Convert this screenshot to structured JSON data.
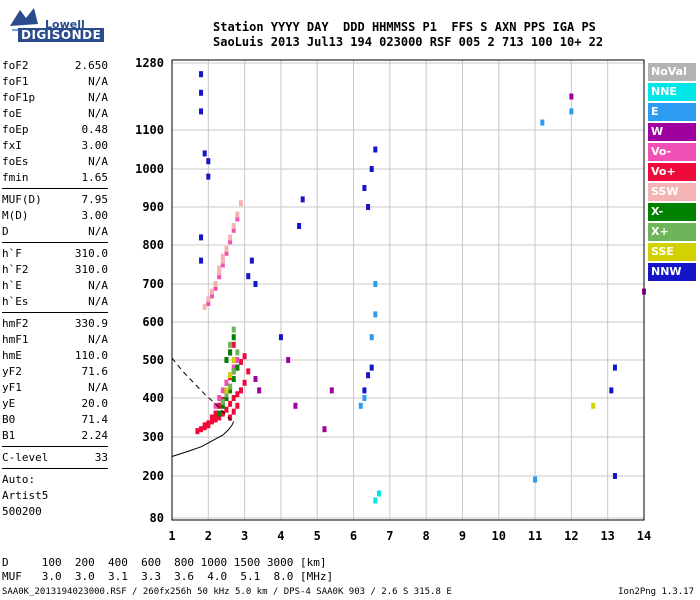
{
  "logo": {
    "line1": "Lowell",
    "line2": "DIGISONDE"
  },
  "header": {
    "line1": "Station YYYY DAY  DDD HHMMSS P1  FFS S AXN PPS IGA PS",
    "line2": "SaoLuis 2013 Jul13 194 023000 RSF 005 2 713 100 10+ 22"
  },
  "params": {
    "group1": [
      {
        "name": "foF2",
        "value": "2.650"
      },
      {
        "name": "foF1",
        "value": "N/A"
      },
      {
        "name": "foF1p",
        "value": "N/A"
      },
      {
        "name": "foE",
        "value": "N/A"
      },
      {
        "name": "foEp",
        "value": "0.48"
      },
      {
        "name": "fxI",
        "value": "3.00"
      },
      {
        "name": "foEs",
        "value": "N/A"
      },
      {
        "name": "fmin",
        "value": "1.65"
      }
    ],
    "group2": [
      {
        "name": "MUF(D)",
        "value": "7.95"
      },
      {
        "name": "M(D)",
        "value": "3.00"
      },
      {
        "name": "D",
        "value": "N/A"
      }
    ],
    "group3": [
      {
        "name": "h`F",
        "value": "310.0"
      },
      {
        "name": "h`F2",
        "value": "310.0"
      },
      {
        "name": "h`E",
        "value": "N/A"
      },
      {
        "name": "h`Es",
        "value": "N/A"
      }
    ],
    "group4": [
      {
        "name": "hmF2",
        "value": "330.9"
      },
      {
        "name": "hmF1",
        "value": "N/A"
      },
      {
        "name": "hmE",
        "value": "110.0"
      },
      {
        "name": "yF2",
        "value": "71.6"
      },
      {
        "name": "yF1",
        "value": "N/A"
      },
      {
        "name": "yE",
        "value": "20.0"
      },
      {
        "name": "B0",
        "value": "71.4"
      },
      {
        "name": "B1",
        "value": "2.24"
      }
    ],
    "clevel": {
      "name": "C-level",
      "value": "33"
    },
    "auto": [
      "Auto:",
      "Artist5",
      "500200"
    ]
  },
  "legend": [
    {
      "label": "NoVal",
      "color": "#b4b4b4"
    },
    {
      "label": "NNE",
      "color": "#00e6e6"
    },
    {
      "label": "E",
      "color": "#2d9bf0"
    },
    {
      "label": "W",
      "color": "#a000a0"
    },
    {
      "label": "Vo-",
      "color": "#f050b4"
    },
    {
      "label": "Vo+",
      "color": "#f00a3c"
    },
    {
      "label": "SSW",
      "color": "#f5b4b4"
    },
    {
      "label": "X-",
      "color": "#008200"
    },
    {
      "label": "X+",
      "color": "#6eb45a"
    },
    {
      "label": "SSE",
      "color": "#d2d200"
    },
    {
      "label": "NNW",
      "color": "#1414c8"
    }
  ],
  "footer": {
    "line1": "D     100  200  400  600  800 1000 1500 3000 [km]",
    "line2": "MUF   3.0  3.0  3.1  3.3  3.6  4.0  5.1  8.0 [MHz]",
    "info": "SAA0K_2013194023000.RSF / 260fx256h 50 kHz 5.0 km / DPS-4 SAA0K 903 / 2.6 S 315.8 E",
    "version": "Ion2Png 1.3.17"
  },
  "chart_data": {
    "type": "scatter",
    "x_ticks": [
      "1",
      "2",
      "3",
      "4",
      "5",
      "6",
      "7",
      "8",
      "9",
      "10",
      "11",
      "12",
      "13",
      "14"
    ],
    "y_ticks": [
      "80",
      "200",
      "300",
      "400",
      "500",
      "600",
      "700",
      "800",
      "900",
      "1000",
      "1100",
      "1280"
    ],
    "xlim": [
      1,
      14
    ],
    "ylim": [
      80,
      1280
    ],
    "grid": true,
    "series": [
      {
        "name": "Vo+",
        "color": "#f00a3c",
        "x": [
          1.7,
          1.8,
          1.9,
          2.0,
          2.1,
          2.2,
          2.3,
          2.4,
          2.5,
          2.6,
          2.7,
          2.8,
          2.9,
          2.5,
          2.6,
          2.7,
          2.8,
          2.9,
          3.0,
          2.2,
          2.3,
          2.4,
          2.1,
          2.0,
          1.9,
          2.6,
          2.7,
          2.8,
          2.9,
          3.0,
          3.1,
          2.5,
          2.6,
          2.7
        ],
        "y": [
          315,
          320,
          325,
          330,
          340,
          345,
          350,
          360,
          370,
          385,
          400,
          410,
          420,
          440,
          455,
          470,
          480,
          495,
          510,
          360,
          380,
          395,
          350,
          335,
          330,
          350,
          365,
          380,
          420,
          440,
          470,
          500,
          520,
          540
        ]
      },
      {
        "name": "Vo-",
        "color": "#f050b4",
        "x": [
          2.0,
          2.1,
          2.2,
          2.3,
          2.4,
          2.5,
          2.6,
          2.7,
          2.8,
          2.2,
          2.3,
          2.4,
          2.5,
          2.6,
          2.7,
          2.8
        ],
        "y": [
          650,
          670,
          690,
          720,
          750,
          780,
          810,
          840,
          870,
          380,
          400,
          420,
          440,
          460,
          480,
          500
        ]
      },
      {
        "name": "SSW",
        "color": "#f5b4b4",
        "x": [
          1.9,
          2.0,
          2.1,
          2.2,
          2.3,
          2.4,
          2.5,
          2.6,
          2.7,
          2.8,
          2.9,
          2.3,
          2.4
        ],
        "y": [
          640,
          660,
          680,
          700,
          730,
          760,
          790,
          820,
          850,
          880,
          910,
          740,
          770
        ]
      },
      {
        "name": "X-",
        "color": "#008200",
        "x": [
          2.3,
          2.4,
          2.5,
          2.6,
          2.7,
          2.8,
          2.5,
          2.6,
          2.7
        ],
        "y": [
          360,
          380,
          400,
          420,
          450,
          480,
          500,
          520,
          560
        ]
      },
      {
        "name": "X+",
        "color": "#6eb45a",
        "x": [
          2.4,
          2.5,
          2.6,
          2.7,
          2.8,
          2.6,
          2.7
        ],
        "y": [
          390,
          410,
          430,
          470,
          520,
          540,
          580
        ]
      },
      {
        "name": "SSE",
        "color": "#d2d200",
        "x": [
          2.5,
          2.6,
          2.7,
          12.6
        ],
        "y": [
          420,
          460,
          500,
          380
        ]
      },
      {
        "name": "NNW",
        "color": "#1414c8",
        "x": [
          1.8,
          1.8,
          1.8,
          1.8,
          1.8,
          1.9,
          2.0,
          2.0,
          3.1,
          3.2,
          3.3,
          4.0,
          4.5,
          4.6,
          6.3,
          6.4,
          6.5,
          6.6,
          6.3,
          6.4,
          6.5,
          13.2,
          13.2,
          13.1
        ],
        "y": [
          1250,
          1200,
          1150,
          820,
          760,
          1040,
          1020,
          980,
          720,
          760,
          700,
          560,
          850,
          920,
          950,
          900,
          1000,
          1050,
          420,
          460,
          480,
          480,
          200,
          420
        ]
      },
      {
        "name": "E",
        "color": "#2d9bf0",
        "x": [
          6.6,
          6.6,
          6.5,
          6.3,
          6.2,
          11.2,
          12.0,
          11.0
        ],
        "y": [
          700,
          620,
          560,
          400,
          380,
          1120,
          1150,
          190
        ]
      },
      {
        "name": "W",
        "color": "#a000a0",
        "x": [
          3.3,
          3.4,
          4.2,
          4.4,
          5.2,
          5.4,
          12.0,
          14.0
        ],
        "y": [
          450,
          420,
          500,
          380,
          320,
          420,
          1190,
          680
        ]
      },
      {
        "name": "NNE",
        "color": "#00e6e6",
        "x": [
          6.6,
          6.7
        ],
        "y": [
          130,
          150
        ]
      }
    ],
    "curves": [
      {
        "name": "profile",
        "style": "solid",
        "x": [
          1.0,
          1.5,
          1.8,
          2.0,
          2.2,
          2.4,
          2.55,
          2.65,
          2.7
        ],
        "y": [
          250,
          265,
          275,
          285,
          295,
          305,
          318,
          330,
          340
        ]
      },
      {
        "name": "extrapolation",
        "style": "dashed",
        "x": [
          1.0,
          1.3,
          1.6,
          1.9,
          2.2,
          2.45,
          2.65
        ],
        "y": [
          505,
          470,
          440,
          410,
          385,
          360,
          340
        ]
      }
    ]
  }
}
